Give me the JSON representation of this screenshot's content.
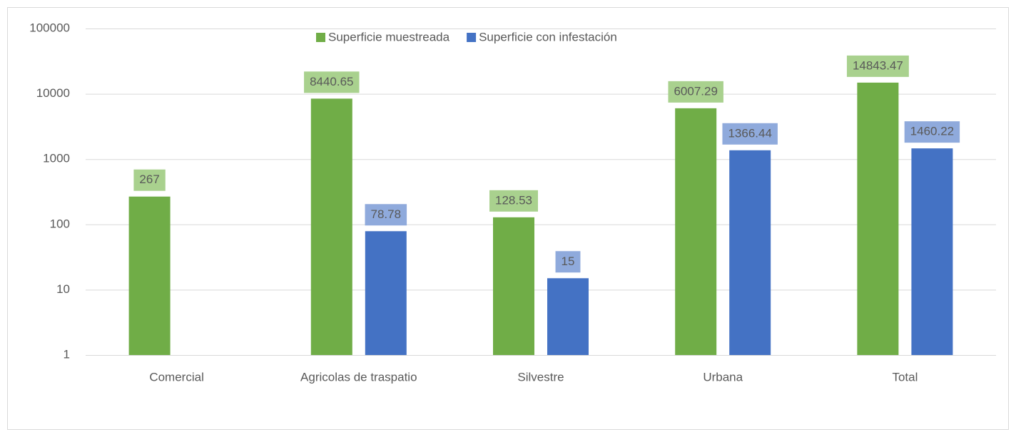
{
  "chart_data": {
    "type": "bar",
    "log": true,
    "grid": true,
    "legend": "top",
    "categories": [
      "Comercial",
      "Agricolas de traspatio",
      "Silvestre",
      "Urbana",
      "Total"
    ],
    "series": [
      {
        "name": "Superficie muestreada",
        "color": "#70ad47",
        "label_color": "#a9d18e",
        "values": [
          267,
          8440.65,
          128.53,
          6007.29,
          14843.47
        ]
      },
      {
        "name": "Superficie con infestación",
        "color": "#4472c4",
        "label_color": "#8faadc",
        "values": [
          null,
          78.78,
          15,
          1366.44,
          1460.22
        ]
      }
    ],
    "ylim": [
      1,
      100000
    ],
    "yticks": [
      1,
      10,
      100,
      1000,
      10000,
      100000
    ]
  }
}
